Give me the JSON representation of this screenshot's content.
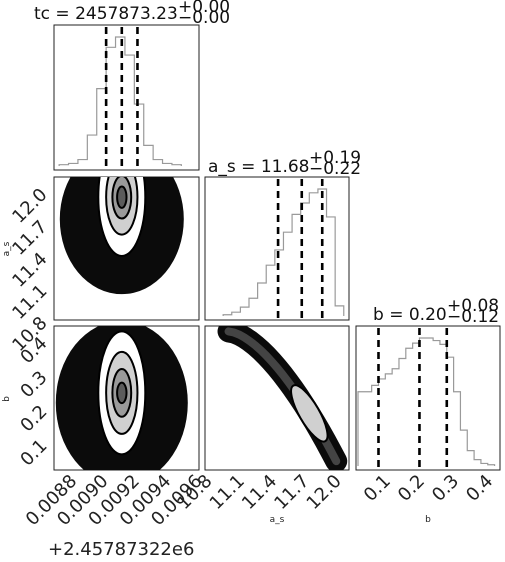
{
  "chart_data": {
    "type": "corner",
    "grid": false,
    "parameters": [
      {
        "name": "tc",
        "title": {
          "prefix": "tc = 2457873.23",
          "up": "+0.00",
          "down": "−0.00"
        },
        "axis_label": "",
        "axis_offset": "+2.45787322e6",
        "range": [
          0.0087,
          0.0096
        ],
        "ticks": [
          0.0088,
          0.009,
          0.0092,
          0.0094,
          0.0096
        ],
        "tick_labels": [
          "0.0088",
          "0.0090",
          "0.0092",
          "0.0094",
          "0.0096"
        ],
        "quantiles": [
          0.00902,
          0.00912,
          0.00922
        ],
        "hist": {
          "bins": [
            0.00872,
            0.00878,
            0.00884,
            0.0089,
            0.00896,
            0.00902,
            0.00908,
            0.00914,
            0.0092,
            0.00926,
            0.00932,
            0.00938,
            0.00944
          ],
          "counts": [
            0.01,
            0.02,
            0.05,
            0.24,
            0.6,
            0.92,
            1.0,
            0.86,
            0.48,
            0.16,
            0.05,
            0.02,
            0.01
          ]
        }
      },
      {
        "name": "a_s",
        "title": {
          "prefix": "a_s = 11.68",
          "up": "+0.19",
          "down": "−0.22"
        },
        "axis_label": "a_s",
        "range": [
          10.8,
          12.1
        ],
        "ticks": [
          10.8,
          11.1,
          11.4,
          11.7,
          12.0
        ],
        "tick_labels": [
          "10.8",
          "11.1",
          "11.4",
          "11.7",
          "12.0"
        ],
        "quantiles": [
          11.46,
          11.68,
          11.87
        ],
        "hist": {
          "bins": [
            10.95,
            11.03,
            11.11,
            11.19,
            11.27,
            11.35,
            11.43,
            11.51,
            11.59,
            11.67,
            11.75,
            11.83,
            11.91,
            11.99
          ],
          "counts": [
            0.01,
            0.03,
            0.07,
            0.14,
            0.26,
            0.4,
            0.52,
            0.66,
            0.8,
            0.89,
            0.97,
            1.0,
            0.78,
            0.08
          ]
        }
      },
      {
        "name": "b",
        "title": {
          "prefix": "b = 0.20",
          "up": "+0.08",
          "down": "−0.12"
        },
        "axis_label": "b",
        "range": [
          0.02,
          0.43
        ],
        "ticks": [
          0.1,
          0.2,
          0.3,
          0.4
        ],
        "tick_labels": [
          "0.1",
          "0.2",
          "0.3",
          "0.4"
        ],
        "quantiles": [
          0.08,
          0.2,
          0.28
        ],
        "hist": {
          "bins": [
            0.02,
            0.04,
            0.06,
            0.08,
            0.1,
            0.12,
            0.14,
            0.16,
            0.18,
            0.2,
            0.22,
            0.24,
            0.26,
            0.28,
            0.3,
            0.32,
            0.34,
            0.36,
            0.38,
            0.4
          ],
          "counts": [
            0.58,
            0.58,
            0.63,
            0.68,
            0.72,
            0.76,
            0.84,
            0.92,
            0.96,
            1.0,
            1.0,
            0.98,
            0.95,
            0.85,
            0.58,
            0.28,
            0.12,
            0.05,
            0.02,
            0.01
          ]
        }
      }
    ],
    "contours_2d": [
      {
        "x": "tc",
        "y": "a_s",
        "center": [
          0.00912,
          11.93
        ],
        "levels": [
          [
            0.00015,
            0.55
          ],
          [
            0.0001,
            0.35
          ],
          [
            6e-05,
            0.2
          ],
          [
            3e-05,
            0.1
          ]
        ]
      },
      {
        "x": "tc",
        "y": "b",
        "center": [
          0.00912,
          0.24
        ],
        "levels": [
          [
            0.00015,
            0.18
          ],
          [
            0.0001,
            0.12
          ],
          [
            6e-05,
            0.07
          ],
          [
            3e-05,
            0.03
          ]
        ]
      },
      {
        "x": "a_s",
        "y": "b",
        "center": [
          11.75,
          0.18
        ],
        "levels": [
          [
            0.14,
            0.05
          ]
        ]
      }
    ]
  }
}
